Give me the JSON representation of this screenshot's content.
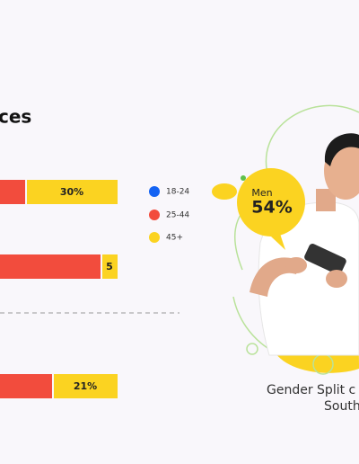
{
  "header": {
    "title": "ces"
  },
  "bars": [
    {
      "label": "30%"
    },
    {
      "label": "5"
    },
    {
      "label": "21%"
    }
  ],
  "legend": [
    "18-24",
    "25-44",
    "45+"
  ],
  "badge": {
    "label": "Men",
    "value": "54%"
  },
  "caption": [
    "Gender Split c",
    "South"
  ]
}
